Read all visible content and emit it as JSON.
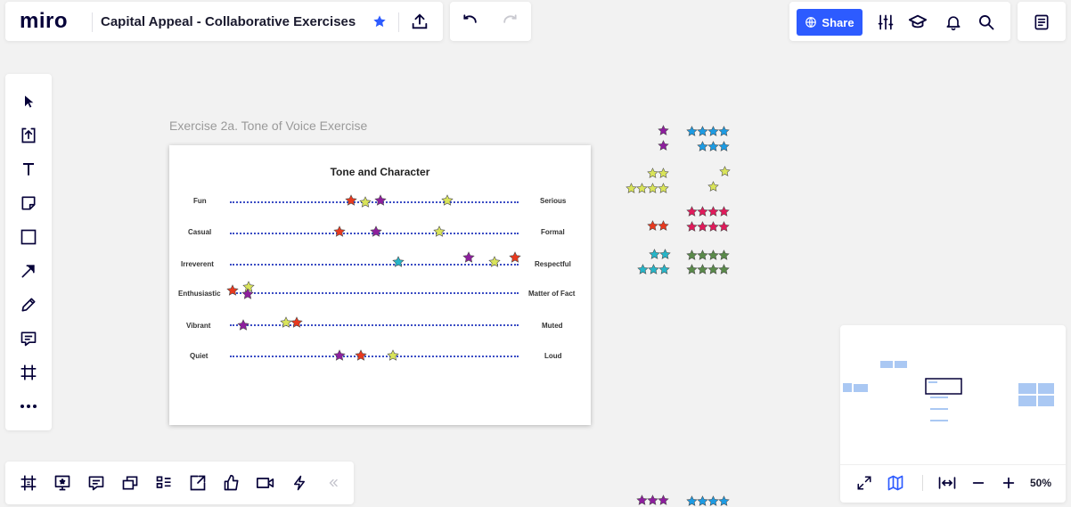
{
  "app": {
    "logo": "miro",
    "board_title": "Capital Appeal - Collaborative Exercises"
  },
  "header": {
    "share_label": "Share"
  },
  "frame": {
    "label": "Exercise 2a. Tone of Voice Exercise",
    "title": "Tone and Character",
    "rows": [
      {
        "left": "Fun",
        "right": "Serious"
      },
      {
        "left": "Casual",
        "right": "Formal"
      },
      {
        "left": "Irreverent",
        "right": "Respectful"
      },
      {
        "left": "Enthusiastic",
        "right": "Matter of Fact"
      },
      {
        "left": "Vibrant",
        "right": "Muted"
      },
      {
        "left": "Quiet",
        "right": "Loud"
      }
    ]
  },
  "colors": {
    "accent": "#2d5bff",
    "star_red": "#e8391e",
    "star_purple": "#8e1e9e",
    "star_yellow": "#d9e45a",
    "star_cyan": "#27b5c8",
    "star_blue": "#1d9be3",
    "star_pink": "#e01b5b",
    "star_green": "#5a8a4a"
  },
  "minimap": {
    "zoom": "50%"
  },
  "icons": {
    "left_toolbar": [
      "select-icon",
      "upload-icon",
      "text-icon",
      "sticky-note-icon",
      "shape-icon",
      "arrow-icon",
      "pen-icon",
      "comment-icon",
      "frame-icon",
      "more-icon"
    ],
    "bottom_toolbar": [
      "frames-icon",
      "presentation-icon",
      "comments-icon",
      "cards-icon",
      "kanban-icon",
      "screen-share-icon",
      "voting-icon",
      "video-icon",
      "integrations-icon",
      "collapse-icon"
    ]
  }
}
